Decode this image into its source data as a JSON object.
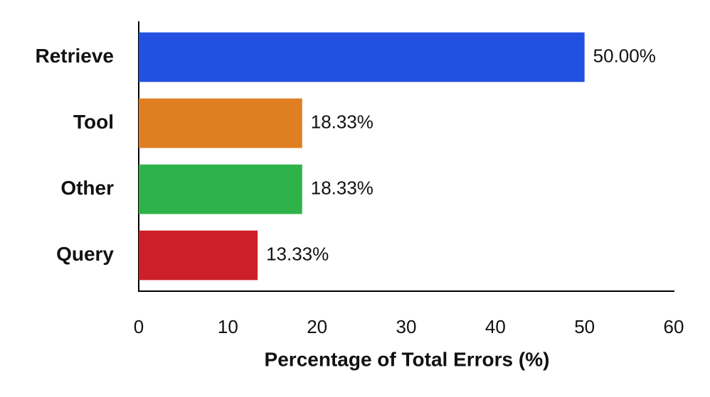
{
  "chart_data": {
    "type": "barh",
    "xlabel": "Percentage of Total Errors (%)",
    "categories": [
      "Retrieve",
      "Tool",
      "Other",
      "Query"
    ],
    "values": [
      50,
      18.33,
      18.33,
      13.33
    ],
    "value_labels": [
      "50.00%",
      "18.33%",
      "18.33%",
      "13.33%"
    ],
    "colors": [
      "#2250e0",
      "#e07e22",
      "#2eb34a",
      "#cc1f27"
    ],
    "xlim": [
      0,
      60
    ],
    "xticks": [
      0,
      10,
      20,
      30,
      40,
      50,
      60
    ],
    "grid": false
  }
}
